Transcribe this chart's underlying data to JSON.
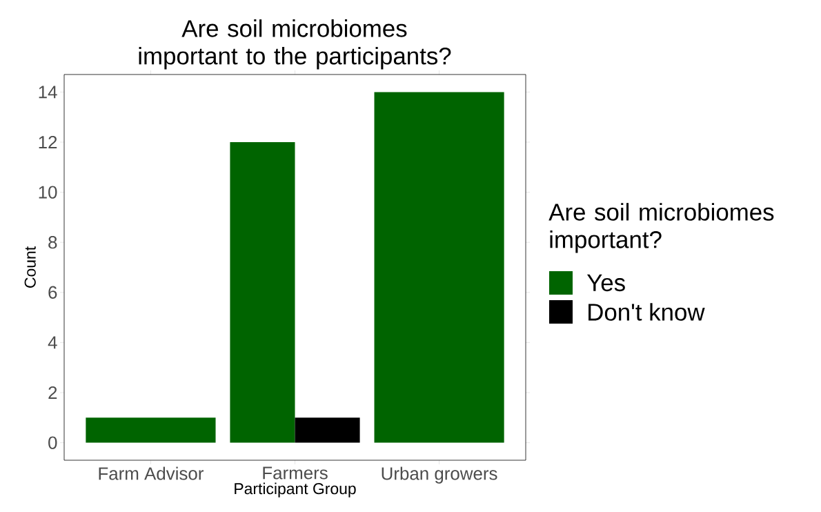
{
  "chart_data": {
    "type": "bar",
    "title": "Are soil microbiomes important to the participants?",
    "xlabel": "Participant Group",
    "ylabel": "Count",
    "legend_title": "Are soil microbiomes important?",
    "categories": [
      "Farm Advisor",
      "Farmers",
      "Urban growers"
    ],
    "series": [
      {
        "name": "Yes",
        "color": "#006400",
        "values": [
          1,
          12,
          14
        ]
      },
      {
        "name": "Don't know",
        "color": "#000000",
        "values": [
          null,
          1,
          null
        ]
      }
    ],
    "ylim": [
      -0.7,
      14.7
    ],
    "yticks": [
      0,
      2,
      4,
      6,
      8,
      10,
      12,
      14
    ],
    "grid": false,
    "legend": "right"
  }
}
